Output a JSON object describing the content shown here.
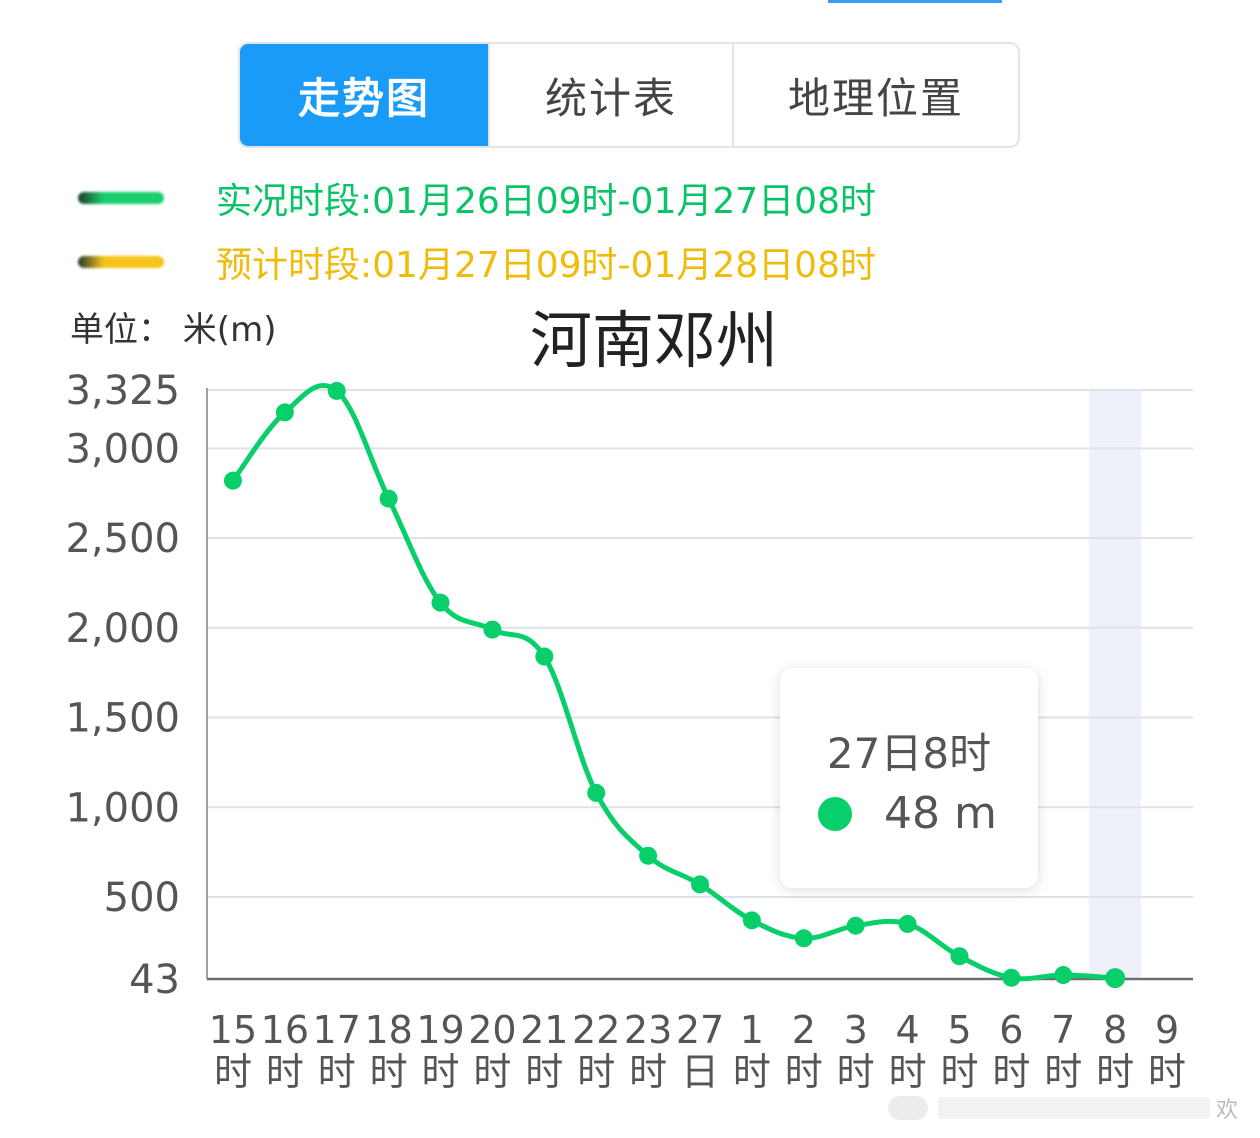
{
  "tabs": [
    {
      "label": "走势图",
      "active": true
    },
    {
      "label": "统计表",
      "active": false
    },
    {
      "label": "地理位置",
      "active": false
    }
  ],
  "legend": [
    {
      "text": "实况时段:01月26日09时-01月27日08时",
      "color": "#08c466",
      "swatch_color": "#19cf6d"
    },
    {
      "text": "预计时段:01月27日09时-01月28日08时",
      "color": "#f0bb0a",
      "swatch_color": "#f5c31a"
    }
  ],
  "unit_label": "单位： 米(m)",
  "chart_data": {
    "type": "line",
    "title": "河南邓州",
    "xlabel": "",
    "ylabel": "单位： 米(m)",
    "categories": [
      [
        "15",
        "时"
      ],
      [
        "16",
        "时"
      ],
      [
        "17",
        "时"
      ],
      [
        "18",
        "时"
      ],
      [
        "19",
        "时"
      ],
      [
        "20",
        "时"
      ],
      [
        "21",
        "时"
      ],
      [
        "22",
        "时"
      ],
      [
        "23",
        "时"
      ],
      [
        "27",
        "日"
      ],
      [
        "1",
        "时"
      ],
      [
        "2",
        "时"
      ],
      [
        "3",
        "时"
      ],
      [
        "4",
        "时"
      ],
      [
        "5",
        "时"
      ],
      [
        "6",
        "时"
      ],
      [
        "7",
        "时"
      ],
      [
        "8",
        "时"
      ],
      [
        "9",
        "时"
      ]
    ],
    "series": [
      {
        "values": [
          2820,
          3200,
          3320,
          2720,
          2140,
          1990,
          1840,
          1080,
          730,
          570,
          370,
          270,
          340,
          350,
          170,
          50,
          65,
          48,
          null
        ],
        "color": "#08cf6a"
      }
    ],
    "yticks": [
      43,
      500,
      1000,
      1500,
      2000,
      2500,
      3000,
      3325
    ],
    "ytick_labels": [
      "43",
      "500",
      "1,000",
      "1,500",
      "2,000",
      "2,500",
      "3,000",
      "3,325"
    ],
    "ylim": [
      43,
      3325
    ],
    "grid": true,
    "highlight_index": 17,
    "legend": "top-left"
  },
  "tooltip": {
    "title": "27日8时",
    "value": "48 m",
    "dot_color": "#08cf6a"
  },
  "watermark": {
    "text": "欢"
  }
}
